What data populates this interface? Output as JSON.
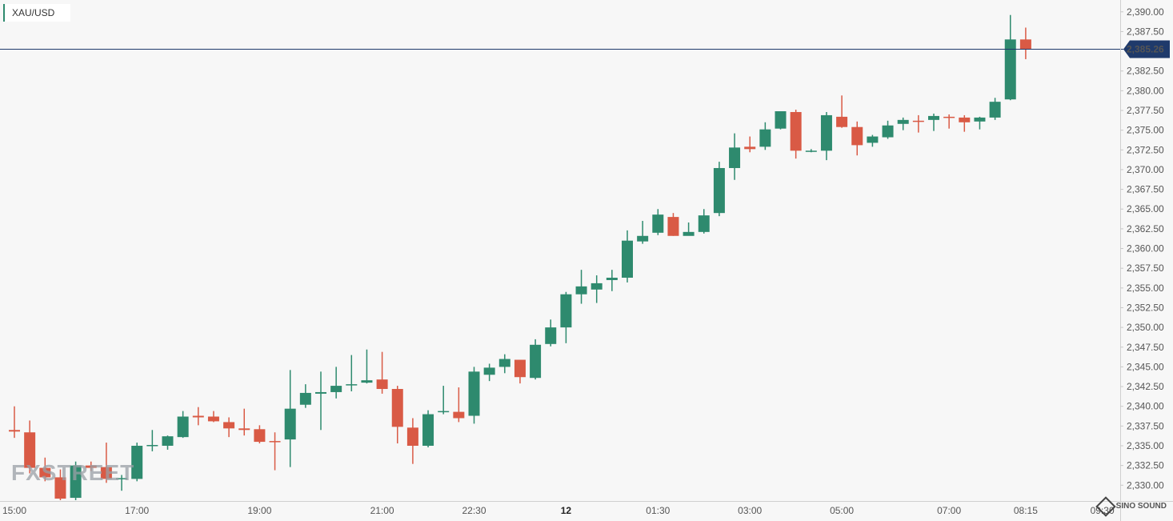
{
  "ticker": {
    "label": "XAU/USD",
    "accent_color": "#2e8a6e"
  },
  "watermark": {
    "left": "FXSTREET",
    "right": "SINO SOUND"
  },
  "price_tag": {
    "value": "2,385.26"
  },
  "chart_data": {
    "type": "candlestick",
    "title": "XAU/USD",
    "ylim": [
      2328.0,
      2391.5
    ],
    "current_price": 2385.26,
    "colors": {
      "up": "#2e8a6e",
      "down": "#d95a45",
      "price_line": "#1f3a6b"
    },
    "y_ticks": [
      {
        "value": 2390.0,
        "label": "2,390.00"
      },
      {
        "value": 2387.5,
        "label": "2,387.50"
      },
      {
        "value": 2382.5,
        "label": "2,382.50"
      },
      {
        "value": 2380.0,
        "label": "2,380.00"
      },
      {
        "value": 2377.5,
        "label": "2,377.50"
      },
      {
        "value": 2375.0,
        "label": "2,375.00"
      },
      {
        "value": 2372.5,
        "label": "2,372.50"
      },
      {
        "value": 2370.0,
        "label": "2,370.00"
      },
      {
        "value": 2367.5,
        "label": "2,367.50"
      },
      {
        "value": 2365.0,
        "label": "2,365.00"
      },
      {
        "value": 2362.5,
        "label": "2,362.50"
      },
      {
        "value": 2360.0,
        "label": "2,360.00"
      },
      {
        "value": 2357.5,
        "label": "2,357.50"
      },
      {
        "value": 2355.0,
        "label": "2,355.00"
      },
      {
        "value": 2352.5,
        "label": "2,352.50"
      },
      {
        "value": 2350.0,
        "label": "2,350.00"
      },
      {
        "value": 2347.5,
        "label": "2,347.50"
      },
      {
        "value": 2345.0,
        "label": "2,345.00"
      },
      {
        "value": 2342.5,
        "label": "2,342.50"
      },
      {
        "value": 2340.0,
        "label": "2,340.00"
      },
      {
        "value": 2337.5,
        "label": "2,337.50"
      },
      {
        "value": 2335.0,
        "label": "2,335.00"
      },
      {
        "value": 2332.5,
        "label": "2,332.50"
      },
      {
        "value": 2330.0,
        "label": "2,330.00"
      }
    ],
    "x_ticks": [
      {
        "index": 0.0,
        "label": "15:00",
        "bold": false
      },
      {
        "index": 8.0,
        "label": "17:00",
        "bold": false
      },
      {
        "index": 16.0,
        "label": "19:00",
        "bold": false
      },
      {
        "index": 24.0,
        "label": "21:00",
        "bold": false
      },
      {
        "index": 30.0,
        "label": "22:30",
        "bold": false
      },
      {
        "index": 36.0,
        "label": "12",
        "bold": true
      },
      {
        "index": 42.0,
        "label": "01:30",
        "bold": false
      },
      {
        "index": 48.0,
        "label": "03:00",
        "bold": false
      },
      {
        "index": 54.0,
        "label": "05:00",
        "bold": false
      },
      {
        "index": 61.0,
        "label": "07:00",
        "bold": false
      },
      {
        "index": 66.0,
        "label": "08:15",
        "bold": false
      },
      {
        "index": 71.0,
        "label": "09:30",
        "bold": false
      }
    ],
    "candles": [
      {
        "o": 2337.0,
        "h": 2340.0,
        "l": 2336.0,
        "c": 2336.8
      },
      {
        "o": 2336.7,
        "h": 2338.2,
        "l": 2331.5,
        "c": 2332.2
      },
      {
        "o": 2332.2,
        "h": 2333.5,
        "l": 2330.5,
        "c": 2331.0
      },
      {
        "o": 2331.0,
        "h": 2332.0,
        "l": 2328.1,
        "c": 2328.3
      },
      {
        "o": 2328.4,
        "h": 2333.0,
        "l": 2328.1,
        "c": 2332.5
      },
      {
        "o": 2332.5,
        "h": 2333.0,
        "l": 2331.8,
        "c": 2332.2
      },
      {
        "o": 2332.3,
        "h": 2335.4,
        "l": 2330.3,
        "c": 2330.8
      },
      {
        "o": 2330.8,
        "h": 2331.3,
        "l": 2329.3,
        "c": 2330.9
      },
      {
        "o": 2330.8,
        "h": 2335.4,
        "l": 2330.5,
        "c": 2335.0
      },
      {
        "o": 2335.0,
        "h": 2337.0,
        "l": 2334.3,
        "c": 2335.1
      },
      {
        "o": 2335.0,
        "h": 2336.3,
        "l": 2334.5,
        "c": 2336.2
      },
      {
        "o": 2336.1,
        "h": 2339.4,
        "l": 2336.0,
        "c": 2338.7
      },
      {
        "o": 2338.8,
        "h": 2339.9,
        "l": 2337.6,
        "c": 2338.6
      },
      {
        "o": 2338.7,
        "h": 2339.4,
        "l": 2338.0,
        "c": 2338.1
      },
      {
        "o": 2338.0,
        "h": 2338.6,
        "l": 2336.1,
        "c": 2337.2
      },
      {
        "o": 2337.2,
        "h": 2339.7,
        "l": 2336.3,
        "c": 2337.0
      },
      {
        "o": 2337.1,
        "h": 2337.6,
        "l": 2335.3,
        "c": 2335.5
      },
      {
        "o": 2335.6,
        "h": 2336.7,
        "l": 2331.9,
        "c": 2335.5
      },
      {
        "o": 2335.8,
        "h": 2344.6,
        "l": 2332.3,
        "c": 2339.7
      },
      {
        "o": 2340.2,
        "h": 2342.8,
        "l": 2339.8,
        "c": 2341.7
      },
      {
        "o": 2341.6,
        "h": 2344.4,
        "l": 2337.0,
        "c": 2341.8
      },
      {
        "o": 2341.8,
        "h": 2345.0,
        "l": 2341.0,
        "c": 2342.6
      },
      {
        "o": 2342.7,
        "h": 2346.5,
        "l": 2341.9,
        "c": 2342.8
      },
      {
        "o": 2343.0,
        "h": 2347.2,
        "l": 2342.9,
        "c": 2343.3
      },
      {
        "o": 2343.4,
        "h": 2346.9,
        "l": 2341.6,
        "c": 2342.2
      },
      {
        "o": 2342.2,
        "h": 2342.6,
        "l": 2335.3,
        "c": 2337.4
      },
      {
        "o": 2337.3,
        "h": 2338.5,
        "l": 2332.7,
        "c": 2335.0
      },
      {
        "o": 2335.0,
        "h": 2339.5,
        "l": 2334.8,
        "c": 2339.0
      },
      {
        "o": 2339.3,
        "h": 2342.6,
        "l": 2339.0,
        "c": 2339.4
      },
      {
        "o": 2339.3,
        "h": 2342.4,
        "l": 2338.0,
        "c": 2338.5
      },
      {
        "o": 2338.8,
        "h": 2345.0,
        "l": 2337.8,
        "c": 2344.4
      },
      {
        "o": 2344.0,
        "h": 2345.4,
        "l": 2343.2,
        "c": 2344.9
      },
      {
        "o": 2345.0,
        "h": 2346.6,
        "l": 2344.2,
        "c": 2346.0
      },
      {
        "o": 2345.9,
        "h": 2345.8,
        "l": 2342.9,
        "c": 2343.7
      },
      {
        "o": 2343.6,
        "h": 2348.5,
        "l": 2343.4,
        "c": 2347.8
      },
      {
        "o": 2347.9,
        "h": 2351.0,
        "l": 2347.6,
        "c": 2350.0
      },
      {
        "o": 2350.0,
        "h": 2354.5,
        "l": 2348.0,
        "c": 2354.2
      },
      {
        "o": 2354.2,
        "h": 2357.3,
        "l": 2353.0,
        "c": 2355.2
      },
      {
        "o": 2354.8,
        "h": 2356.6,
        "l": 2353.1,
        "c": 2355.6
      },
      {
        "o": 2356.0,
        "h": 2357.3,
        "l": 2354.6,
        "c": 2356.3
      },
      {
        "o": 2356.3,
        "h": 2362.3,
        "l": 2355.7,
        "c": 2361.0
      },
      {
        "o": 2360.9,
        "h": 2363.5,
        "l": 2360.6,
        "c": 2361.6
      },
      {
        "o": 2362.0,
        "h": 2365.0,
        "l": 2361.7,
        "c": 2364.3
      },
      {
        "o": 2364.0,
        "h": 2364.5,
        "l": 2361.6,
        "c": 2361.6
      },
      {
        "o": 2361.6,
        "h": 2363.3,
        "l": 2361.7,
        "c": 2362.1
      },
      {
        "o": 2362.1,
        "h": 2365.0,
        "l": 2361.9,
        "c": 2364.2
      },
      {
        "o": 2364.5,
        "h": 2371.0,
        "l": 2364.1,
        "c": 2370.2
      },
      {
        "o": 2370.2,
        "h": 2374.6,
        "l": 2368.7,
        "c": 2372.8
      },
      {
        "o": 2372.9,
        "h": 2374.2,
        "l": 2372.2,
        "c": 2372.6
      },
      {
        "o": 2372.9,
        "h": 2376.0,
        "l": 2372.5,
        "c": 2375.1
      },
      {
        "o": 2375.2,
        "h": 2377.4,
        "l": 2375.1,
        "c": 2377.4
      },
      {
        "o": 2377.3,
        "h": 2377.6,
        "l": 2371.4,
        "c": 2372.4
      },
      {
        "o": 2372.4,
        "h": 2372.6,
        "l": 2372.2,
        "c": 2372.4
      },
      {
        "o": 2372.4,
        "h": 2377.3,
        "l": 2371.2,
        "c": 2376.9
      },
      {
        "o": 2376.7,
        "h": 2379.4,
        "l": 2375.3,
        "c": 2375.4
      },
      {
        "o": 2375.4,
        "h": 2376.1,
        "l": 2371.8,
        "c": 2373.1
      },
      {
        "o": 2373.4,
        "h": 2374.4,
        "l": 2372.9,
        "c": 2374.2
      },
      {
        "o": 2374.1,
        "h": 2376.2,
        "l": 2373.9,
        "c": 2375.6
      },
      {
        "o": 2375.8,
        "h": 2376.6,
        "l": 2375.0,
        "c": 2376.3
      },
      {
        "o": 2376.2,
        "h": 2376.9,
        "l": 2374.7,
        "c": 2376.1
      },
      {
        "o": 2376.3,
        "h": 2377.1,
        "l": 2374.9,
        "c": 2376.8
      },
      {
        "o": 2376.7,
        "h": 2377.0,
        "l": 2375.2,
        "c": 2376.6
      },
      {
        "o": 2376.6,
        "h": 2376.9,
        "l": 2374.8,
        "c": 2376.0
      },
      {
        "o": 2376.1,
        "h": 2376.7,
        "l": 2375.1,
        "c": 2376.6
      },
      {
        "o": 2376.6,
        "h": 2379.1,
        "l": 2376.3,
        "c": 2378.6
      },
      {
        "o": 2378.9,
        "h": 2389.6,
        "l": 2378.8,
        "c": 2386.5
      },
      {
        "o": 2386.5,
        "h": 2388.0,
        "l": 2384.0,
        "c": 2385.26
      }
    ]
  }
}
